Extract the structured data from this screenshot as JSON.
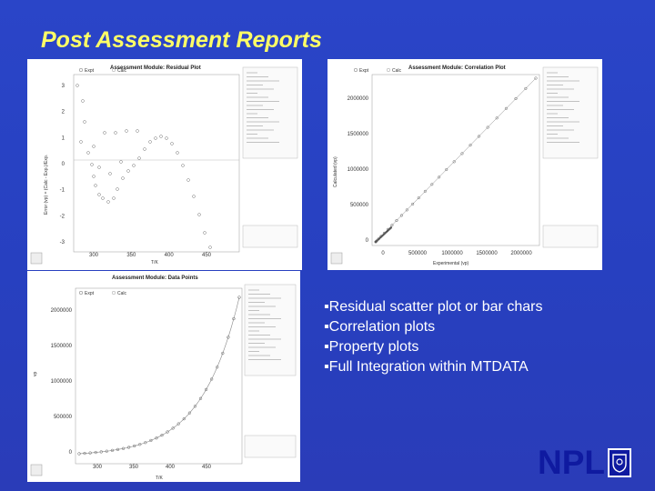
{
  "title": "Post Assessment Reports",
  "bullets": [
    "Residual scatter plot or bar chars",
    "Correlation plots",
    "Property plots",
    "Full Integration within MTDATA"
  ],
  "bullet_marker": "▪",
  "logo_text": "NPL",
  "screenshots": [
    {
      "title": "Assessment Module: Residual Plot",
      "legend": [
        "Expt",
        "Calc"
      ],
      "ylabel": "Error (vp) = (Calc - Exp.)/Exp.",
      "xlabel": "T/K",
      "yticks": [
        "3",
        "2",
        "1",
        "0",
        "-1",
        "-2",
        "-3"
      ],
      "xticks": [
        "300",
        "350",
        "400",
        "450"
      ]
    },
    {
      "title": "Assessment Module: Correlation Plot",
      "legend": [
        "Expt",
        "Calc"
      ],
      "ylabel": "Calculated (vp)",
      "xlabel": "Experimental (vp)",
      "yticks": [
        "2000000",
        "1500000",
        "1000000",
        "500000",
        "0"
      ],
      "xticks": [
        "0",
        "500000",
        "1000000",
        "1500000",
        "2000000"
      ]
    },
    {
      "title": "Assessment Module: Data Points",
      "legend": [
        "Expt",
        "Calc"
      ],
      "ylabel": "vp",
      "xlabel": "T/K",
      "yticks": [
        "2000000",
        "1500000",
        "1000000",
        "500000",
        "0"
      ],
      "xticks": [
        "300",
        "350",
        "400",
        "450"
      ]
    }
  ],
  "colors": {
    "background": "#2a45c8",
    "title": "#ffff66",
    "logo": "#0f1aa0"
  }
}
